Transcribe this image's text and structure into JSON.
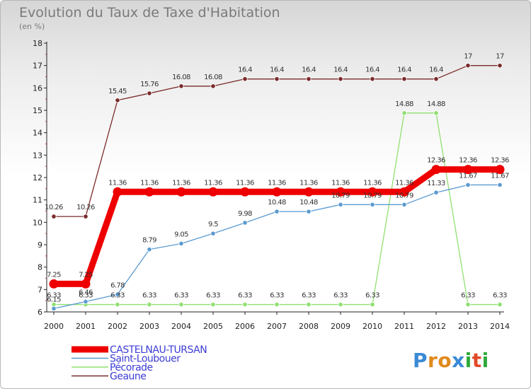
{
  "header": {
    "title": "Evolution du Taux de Taxe d'Habitation",
    "unit": "(en %)"
  },
  "brand": {
    "letters": [
      "P",
      "r",
      "o",
      "x",
      "i",
      "t",
      "i"
    ],
    "colors": [
      "#3a8ad6",
      "#e08a1e",
      "#e08a1e",
      "#3a8ad6",
      "#2faa3a",
      "#e04a2a",
      "#2faa3a"
    ]
  },
  "chart_data": {
    "type": "line",
    "title": "Evolution du Taux de Taxe d'Habitation",
    "ylabel": "(en %)",
    "xlabel": "",
    "x": [
      "2000",
      "2001",
      "2002",
      "2003",
      "2004",
      "2005",
      "2006",
      "2007",
      "2008",
      "2009",
      "2010",
      "2011",
      "2012",
      "2013",
      "2014"
    ],
    "ylim": [
      6,
      18
    ],
    "yticks": [
      "6",
      "7",
      "8",
      "9",
      "10",
      "11",
      "12",
      "13",
      "14",
      "15",
      "16",
      "17",
      "18"
    ],
    "grid": false,
    "legend_position": "bottom-left",
    "series": [
      {
        "name": "Geaune",
        "color": "#7a2a2a",
        "values": [
          10.26,
          10.26,
          15.45,
          15.76,
          16.08,
          16.08,
          16.4,
          16.4,
          16.4,
          16.4,
          16.4,
          16.4,
          16.4,
          17,
          17
        ],
        "labels": [
          "10.26",
          "10.26",
          "15.45",
          "15.76",
          "16.08",
          "16.08",
          "16.4",
          "16.4",
          "16.4",
          "16.4",
          "16.4",
          "16.4",
          "16.4",
          "17",
          "17"
        ]
      },
      {
        "name": "Pécorade",
        "color": "#90e070",
        "values": [
          6.33,
          6.33,
          6.33,
          6.33,
          6.33,
          6.33,
          6.33,
          6.33,
          6.33,
          6.33,
          6.33,
          14.88,
          14.88,
          6.33,
          6.33
        ],
        "labels": [
          "6.33",
          "6.33",
          "6.33",
          "6.33",
          "6.33",
          "6.33",
          "6.33",
          "6.33",
          "6.33",
          "6.33",
          "6.33",
          "14.88",
          "14.88",
          "6.33",
          "6.33"
        ]
      },
      {
        "name": "Saint-Loubouer",
        "color": "#5a9ad0",
        "values": [
          6.15,
          6.46,
          6.78,
          8.79,
          9.05,
          9.5,
          9.98,
          10.48,
          10.48,
          10.79,
          10.79,
          10.79,
          11.33,
          11.67,
          11.67
        ],
        "labels": [
          "6.15",
          "6.46",
          "6.78",
          "8.79",
          "9.05",
          "9.5",
          "9.98",
          "10.48",
          "10.48",
          "10.79",
          "10.79",
          "10.79",
          "11.33",
          "11.67",
          "11.67"
        ]
      },
      {
        "name": "CASTELNAU-TURSAN",
        "color": "#ee0000",
        "values": [
          7.25,
          7.25,
          11.36,
          11.36,
          11.36,
          11.36,
          11.36,
          11.36,
          11.36,
          11.36,
          11.36,
          11.36,
          12.36,
          12.36,
          12.36
        ],
        "labels": [
          "7.25",
          "7.25",
          "11.36",
          "11.36",
          "11.36",
          "11.36",
          "11.36",
          "11.36",
          "11.36",
          "11.36",
          "11.36",
          "11.36",
          "12.36",
          "12.36",
          "12.36"
        ]
      }
    ],
    "legend": [
      "CASTELNAU-TURSAN",
      "Saint-Loubouer",
      "Pécorade",
      "Geaune"
    ]
  }
}
